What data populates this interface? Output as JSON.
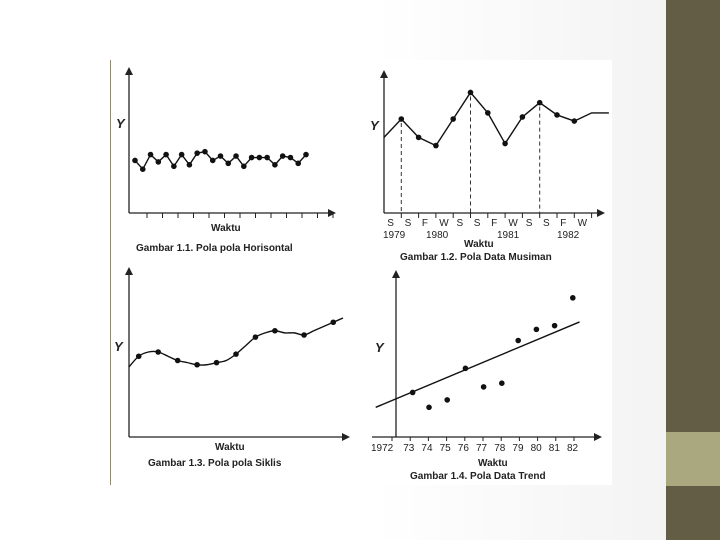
{
  "slide": {
    "colors": {
      "accent_dark": "#645d46",
      "accent_light": "#a9a87f"
    }
  },
  "chart_data": [
    {
      "type": "line",
      "title": "Gambar 1.1. Pola pola Horisontal",
      "xlabel": "Waktu",
      "ylabel": "Y",
      "x": [
        1,
        2,
        3,
        4,
        5,
        6,
        7,
        8,
        9,
        10,
        11,
        12,
        13,
        14,
        15,
        16,
        17,
        18,
        19,
        20,
        21,
        22,
        23
      ],
      "values": [
        3.6,
        3.0,
        4.0,
        3.5,
        4.0,
        3.2,
        4.0,
        3.3,
        4.1,
        4.2,
        3.6,
        3.9,
        3.4,
        3.9,
        3.2,
        3.8,
        3.8,
        3.8,
        3.3,
        3.9,
        3.8,
        3.4,
        4.0
      ],
      "ylim": [
        0,
        6
      ]
    },
    {
      "type": "line",
      "title": "Gambar 1.2. Pola Data Musiman",
      "xlabel": "Waktu",
      "ylabel": "Y",
      "tick_labels": [
        "S",
        "S",
        "F",
        "W",
        "S",
        "S",
        "F",
        "W",
        "S",
        "S",
        "F",
        "W"
      ],
      "year_labels": [
        "1979",
        "1980",
        "1981",
        "1982"
      ],
      "x": [
        0,
        1,
        2,
        3,
        4,
        5,
        6,
        7,
        8,
        9,
        10,
        11,
        12,
        13
      ],
      "values": [
        3.7,
        4.6,
        3.7,
        3.3,
        4.6,
        5.9,
        4.9,
        3.4,
        4.7,
        5.4,
        4.8,
        4.5,
        4.9,
        4.9
      ],
      "points": [
        1,
        2,
        3,
        4,
        5,
        6,
        7,
        8,
        9,
        10,
        11
      ],
      "peaks": [
        1,
        5,
        9
      ],
      "ylim": [
        0,
        7
      ]
    },
    {
      "type": "line",
      "title": "Gambar 1.3. Pola pola Siklis",
      "xlabel": "Waktu",
      "ylabel": "Y",
      "x": [
        0,
        1,
        2,
        3,
        4,
        5,
        6,
        7,
        8,
        9,
        10,
        11,
        12,
        13,
        14,
        15,
        16,
        17,
        18,
        19,
        20,
        21,
        22
      ],
      "values": [
        3.3,
        3.8,
        4.0,
        4.0,
        3.8,
        3.6,
        3.5,
        3.4,
        3.4,
        3.5,
        3.6,
        3.9,
        4.3,
        4.7,
        4.9,
        5.0,
        4.9,
        4.9,
        4.8,
        5.0,
        5.2,
        5.4,
        5.6
      ],
      "points": [
        1,
        3,
        5,
        7,
        9,
        11,
        13,
        15,
        18,
        21
      ],
      "ylim": [
        0,
        8
      ]
    },
    {
      "type": "scatter",
      "title": "Gambar 1.4. Pola Data Trend",
      "xlabel": "Waktu",
      "ylabel": "Y",
      "categories": [
        "1972",
        "73",
        "74",
        "75",
        "76",
        "77",
        "78",
        "79",
        "80",
        "81",
        "82"
      ],
      "x": [
        1972,
        1973,
        1974,
        1975,
        1976,
        1977,
        1978,
        1979,
        1980,
        1981,
        1982
      ],
      "values": [
        2.4,
        1.6,
        2.0,
        3.7,
        2.7,
        2.9,
        5.2,
        5.8,
        6.0,
        7.5,
        null
      ],
      "point_x": [
        1972.2,
        1973.1,
        1974.1,
        1975.1,
        1976.1,
        1977.1,
        1978.0,
        1979.0,
        1980.0,
        1981.0
      ],
      "trend": {
        "x0": 1971.6,
        "y0": 1.6,
        "x1": 1982.8,
        "y1": 6.2
      },
      "ylim": [
        0,
        9
      ]
    }
  ]
}
